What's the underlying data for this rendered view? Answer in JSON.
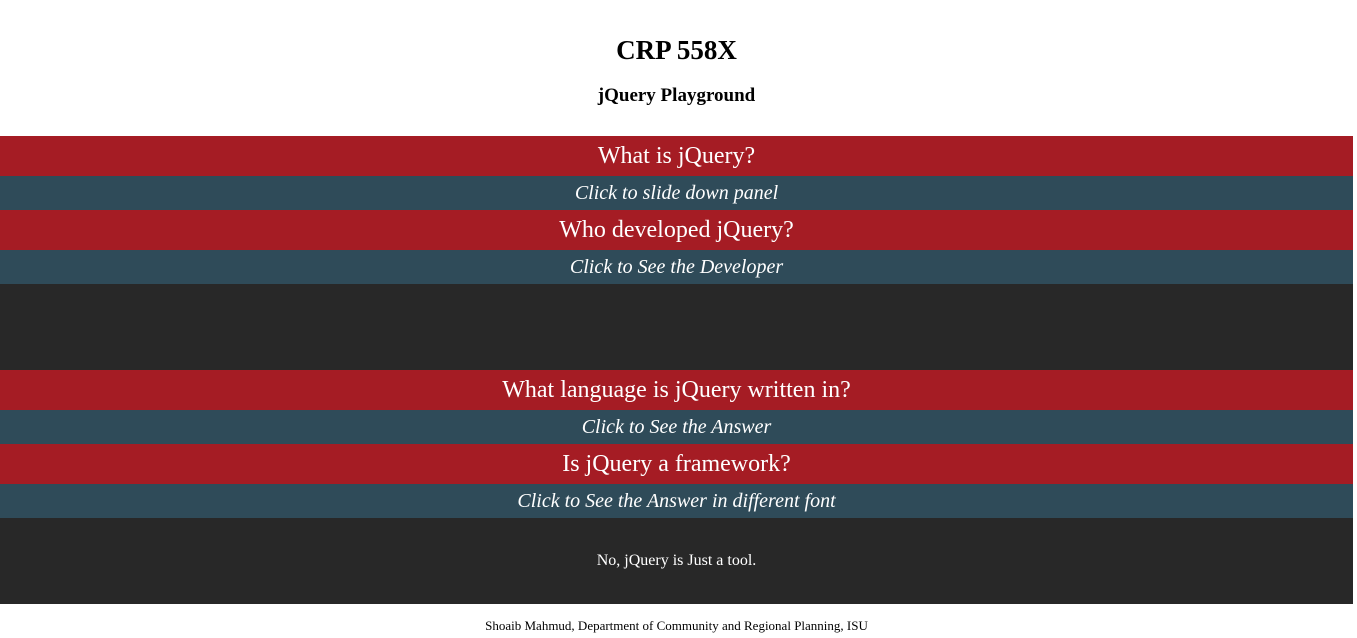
{
  "header": {
    "title": "CRP 558X",
    "subtitle": "jQuery Playground"
  },
  "colors": {
    "question_bg": "#a51c24",
    "toggle_bg": "#2f4b59",
    "panel_bg": "#282828",
    "text_light": "#ffffff"
  },
  "sections": [
    {
      "question": "What is jQuery?",
      "toggle": "Click to slide down panel",
      "panel_text": null
    },
    {
      "question": "Who developed jQuery?",
      "toggle": "Click to See the Developer",
      "panel_text": ""
    },
    {
      "question": "What language is jQuery written in?",
      "toggle": "Click to See the Answer",
      "panel_text": null
    },
    {
      "question": "Is jQuery a framework?",
      "toggle": "Click to See the Answer in different font",
      "panel_text": "No, jQuery is Just a tool."
    }
  ],
  "footer": {
    "text": "Shoaib Mahmud, Department of Community and Regional Planning, ISU"
  }
}
